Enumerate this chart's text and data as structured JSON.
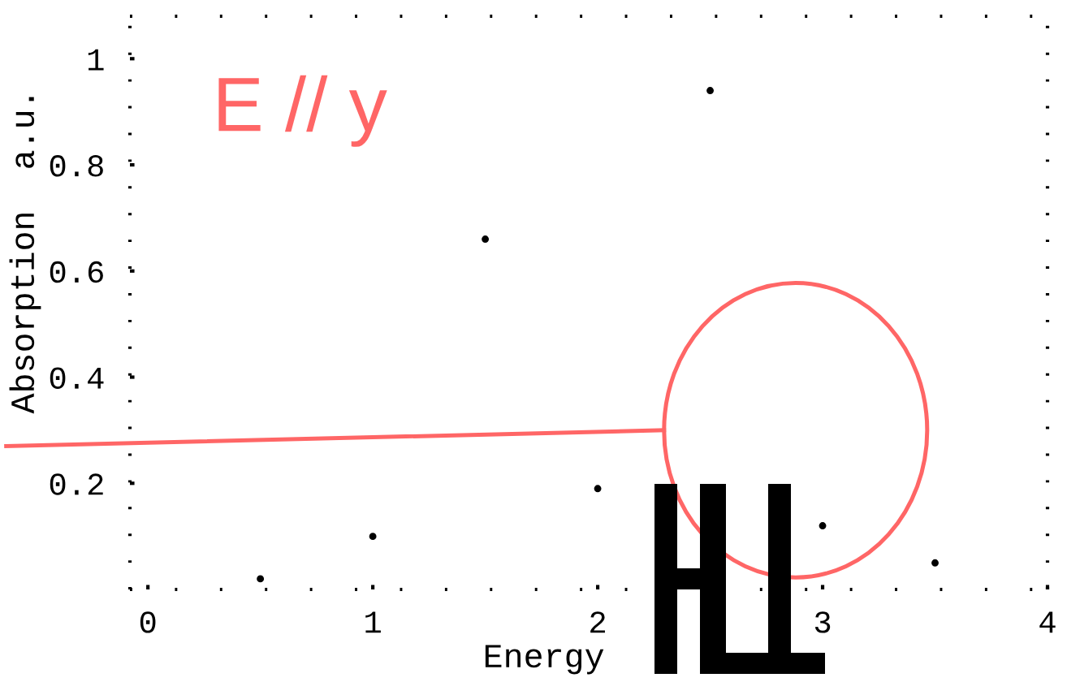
{
  "chart_data": {
    "type": "scatter",
    "xlabel": "Energy",
    "ylabel": "Absorption  a.u.",
    "annotations": [
      "E // y"
    ],
    "x": [
      0.5,
      1,
      1.5,
      2,
      2.5,
      3,
      3.5
    ],
    "series": [
      {
        "color": "#000000",
        "values": [
          0.02,
          0.1,
          0.66,
          0.19,
          0.94,
          0.12,
          0.05
        ]
      }
    ],
    "xlim": [
      -0.08,
      4
    ],
    "ylim": [
      0,
      1.08
    ],
    "xticks": [
      0,
      1,
      2,
      3,
      4
    ],
    "yticks": [
      0.2,
      0.4,
      0.6,
      0.8,
      1
    ],
    "marker": "circle"
  }
}
